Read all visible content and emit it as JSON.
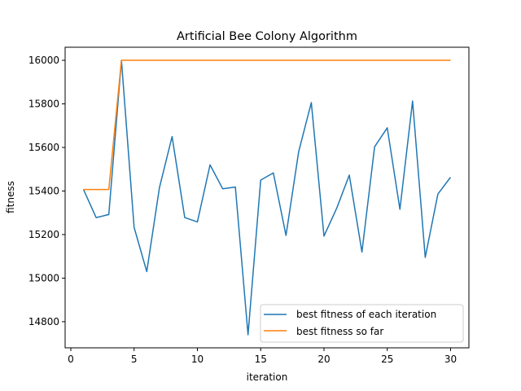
{
  "chart_data": {
    "type": "line",
    "title": "Artificial Bee Colony Algorithm",
    "xlabel": "iteration",
    "ylabel": "fitness",
    "xlim": [
      -0.45,
      31.45
    ],
    "ylim": [
      14680,
      16060
    ],
    "xticks": [
      0,
      5,
      10,
      15,
      20,
      25,
      30
    ],
    "yticks": [
      14800,
      15000,
      15200,
      15400,
      15600,
      15800,
      16000
    ],
    "grid": false,
    "legend_position": "lower-right",
    "x": [
      1,
      2,
      3,
      4,
      5,
      6,
      7,
      8,
      9,
      10,
      11,
      12,
      13,
      14,
      15,
      16,
      17,
      18,
      19,
      20,
      21,
      22,
      23,
      24,
      25,
      26,
      27,
      28,
      29,
      30
    ],
    "series": [
      {
        "name": "best fitness of each iteration",
        "color": "#1f77b4",
        "values": [
          15407,
          15278,
          15292,
          16000,
          15233,
          15030,
          15415,
          15650,
          15278,
          15258,
          15520,
          15410,
          15418,
          14740,
          15450,
          15483,
          15196,
          15580,
          15806,
          15193,
          15320,
          15473,
          15120,
          15603,
          15690,
          15316,
          15813,
          15095,
          15386,
          15463
        ]
      },
      {
        "name": "best fitness so far",
        "color": "#ff7f0e",
        "values": [
          15407,
          15407,
          15407,
          16000,
          16000,
          16000,
          16000,
          16000,
          16000,
          16000,
          16000,
          16000,
          16000,
          16000,
          16000,
          16000,
          16000,
          16000,
          16000,
          16000,
          16000,
          16000,
          16000,
          16000,
          16000,
          16000,
          16000,
          16000,
          16000,
          16000
        ]
      }
    ]
  }
}
